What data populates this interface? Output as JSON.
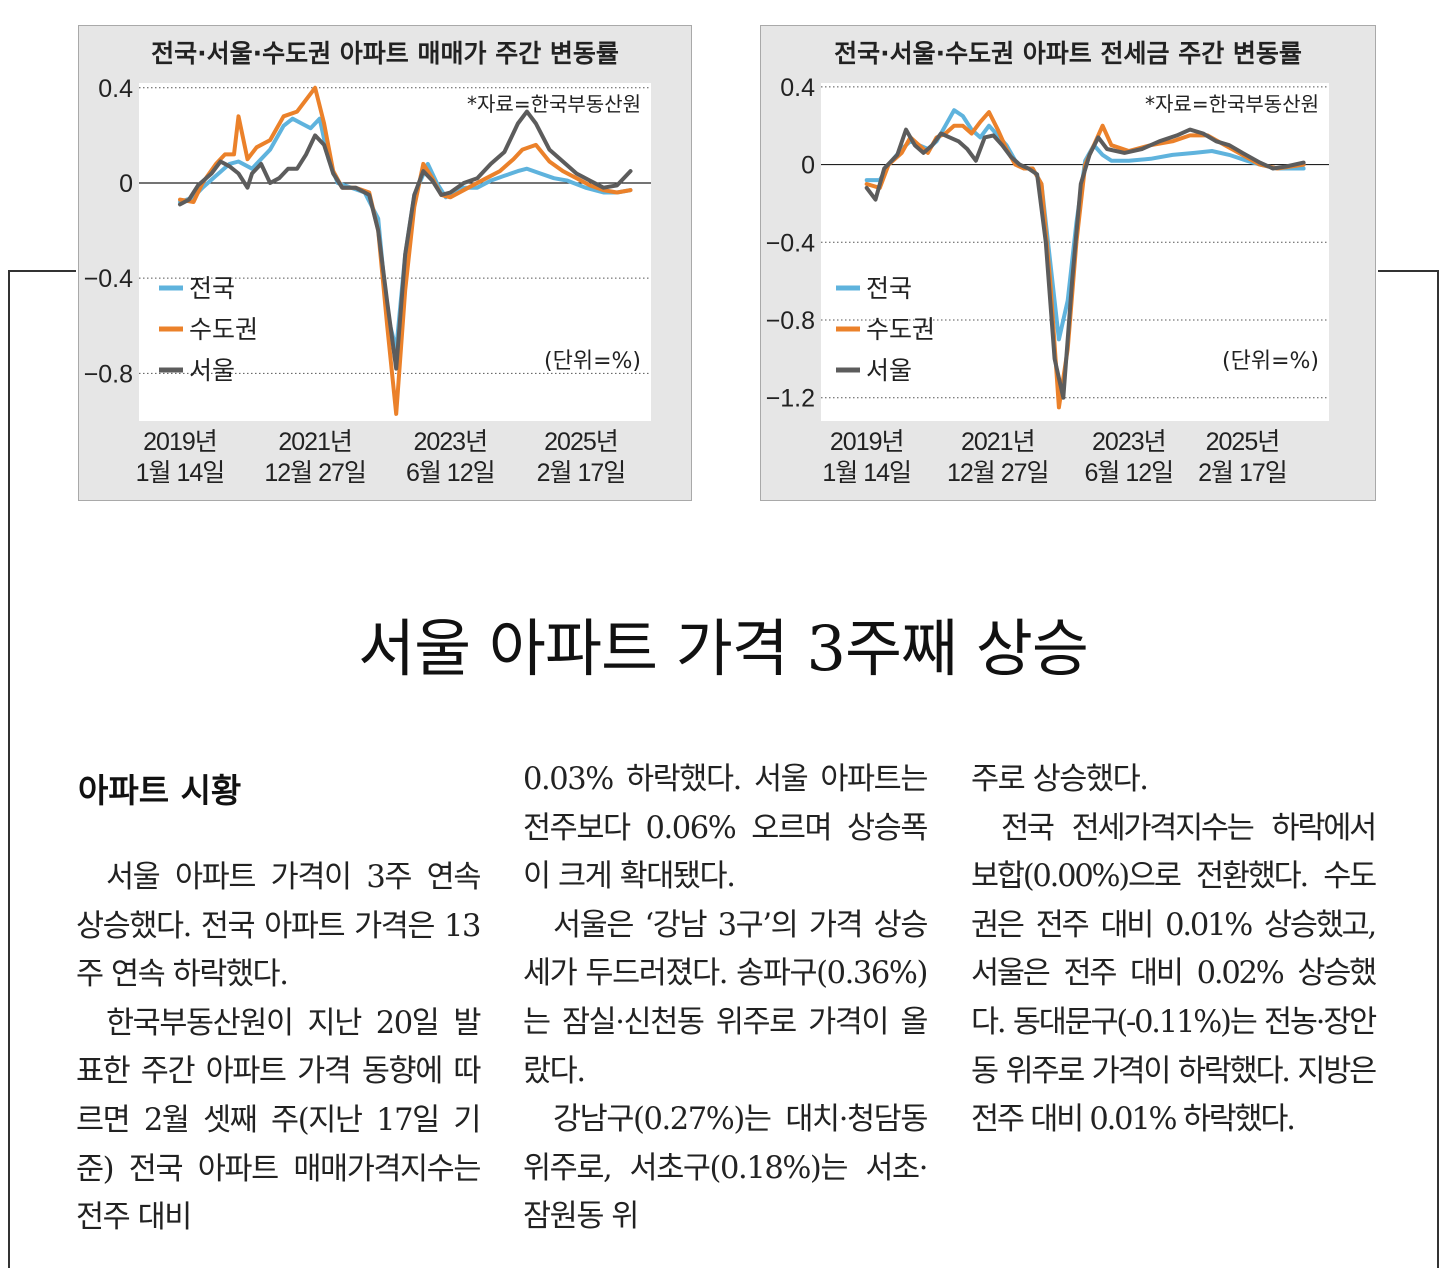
{
  "chart_data": [
    {
      "type": "line",
      "title": "전국·서울·수도권 아파트 매매가 주간 변동률",
      "source": "*자료=한국부동산원",
      "unit": "(단위=%)",
      "ylim": [
        -1.0,
        0.42
      ],
      "yticks": [
        "0.4",
        "0",
        "−0.4",
        "−0.8"
      ],
      "ytick_values": [
        0.4,
        0,
        -0.4,
        -0.8
      ],
      "xticks": [
        {
          "t": 0.0,
          "l1": "2019년",
          "l2": "1월 14일"
        },
        {
          "t": 0.3,
          "l1": "2021년",
          "l2": "12월 27일"
        },
        {
          "t": 0.6,
          "l1": "2023년",
          "l2": "6월 12일"
        },
        {
          "t": 0.89,
          "l1": "2025년",
          "l2": "2월 17일"
        }
      ],
      "legend": [
        "전국",
        "수도권",
        "서울"
      ],
      "grid": "dotted",
      "series": [
        {
          "name": "전국",
          "color": "#5fb3dd",
          "points": [
            [
              0.0,
              -0.08
            ],
            [
              0.03,
              -0.06
            ],
            [
              0.05,
              -0.02
            ],
            [
              0.08,
              0.03
            ],
            [
              0.11,
              0.08
            ],
            [
              0.13,
              0.09
            ],
            [
              0.16,
              0.06
            ],
            [
              0.2,
              0.14
            ],
            [
              0.23,
              0.24
            ],
            [
              0.25,
              0.27
            ],
            [
              0.27,
              0.25
            ],
            [
              0.29,
              0.23
            ],
            [
              0.31,
              0.27
            ],
            [
              0.33,
              0.1
            ],
            [
              0.35,
              0.0
            ],
            [
              0.38,
              -0.02
            ],
            [
              0.41,
              -0.04
            ],
            [
              0.44,
              -0.15
            ],
            [
              0.46,
              -0.55
            ],
            [
              0.48,
              -0.7
            ],
            [
              0.5,
              -0.3
            ],
            [
              0.52,
              -0.05
            ],
            [
              0.55,
              0.08
            ],
            [
              0.57,
              0.0
            ],
            [
              0.59,
              -0.06
            ],
            [
              0.62,
              -0.02
            ],
            [
              0.66,
              -0.02
            ],
            [
              0.69,
              0.01
            ],
            [
              0.72,
              0.03
            ],
            [
              0.75,
              0.05
            ],
            [
              0.77,
              0.06
            ],
            [
              0.8,
              0.04
            ],
            [
              0.83,
              0.02
            ],
            [
              0.86,
              0.01
            ],
            [
              0.9,
              -0.02
            ],
            [
              0.94,
              -0.04
            ],
            [
              0.97,
              -0.04
            ],
            [
              1.0,
              -0.03
            ]
          ]
        },
        {
          "name": "수도권",
          "color": "#eb812a",
          "points": [
            [
              0.0,
              -0.07
            ],
            [
              0.03,
              -0.08
            ],
            [
              0.05,
              0.0
            ],
            [
              0.08,
              0.08
            ],
            [
              0.1,
              0.12
            ],
            [
              0.12,
              0.12
            ],
            [
              0.13,
              0.28
            ],
            [
              0.15,
              0.1
            ],
            [
              0.17,
              0.15
            ],
            [
              0.2,
              0.18
            ],
            [
              0.23,
              0.28
            ],
            [
              0.26,
              0.3
            ],
            [
              0.28,
              0.35
            ],
            [
              0.3,
              0.4
            ],
            [
              0.32,
              0.25
            ],
            [
              0.34,
              0.05
            ],
            [
              0.36,
              -0.02
            ],
            [
              0.39,
              -0.02
            ],
            [
              0.42,
              -0.04
            ],
            [
              0.44,
              -0.2
            ],
            [
              0.46,
              -0.6
            ],
            [
              0.48,
              -0.97
            ],
            [
              0.5,
              -0.45
            ],
            [
              0.52,
              -0.1
            ],
            [
              0.54,
              0.08
            ],
            [
              0.56,
              0.02
            ],
            [
              0.58,
              -0.05
            ],
            [
              0.6,
              -0.06
            ],
            [
              0.64,
              -0.02
            ],
            [
              0.68,
              0.02
            ],
            [
              0.71,
              0.05
            ],
            [
              0.74,
              0.1
            ],
            [
              0.76,
              0.14
            ],
            [
              0.79,
              0.16
            ],
            [
              0.82,
              0.09
            ],
            [
              0.85,
              0.05
            ],
            [
              0.88,
              0.02
            ],
            [
              0.91,
              -0.01
            ],
            [
              0.94,
              -0.03
            ],
            [
              0.97,
              -0.04
            ],
            [
              1.0,
              -0.03
            ]
          ]
        },
        {
          "name": "서울",
          "color": "#5c5c5c",
          "points": [
            [
              0.0,
              -0.09
            ],
            [
              0.02,
              -0.07
            ],
            [
              0.04,
              -0.01
            ],
            [
              0.07,
              0.04
            ],
            [
              0.09,
              0.09
            ],
            [
              0.11,
              0.07
            ],
            [
              0.13,
              0.04
            ],
            [
              0.15,
              -0.02
            ],
            [
              0.16,
              0.04
            ],
            [
              0.18,
              0.08
            ],
            [
              0.2,
              0.0
            ],
            [
              0.22,
              0.02
            ],
            [
              0.24,
              0.06
            ],
            [
              0.26,
              0.06
            ],
            [
              0.28,
              0.12
            ],
            [
              0.3,
              0.2
            ],
            [
              0.32,
              0.16
            ],
            [
              0.34,
              0.04
            ],
            [
              0.36,
              -0.02
            ],
            [
              0.39,
              -0.02
            ],
            [
              0.42,
              -0.05
            ],
            [
              0.44,
              -0.2
            ],
            [
              0.46,
              -0.5
            ],
            [
              0.48,
              -0.78
            ],
            [
              0.5,
              -0.3
            ],
            [
              0.52,
              -0.05
            ],
            [
              0.54,
              0.05
            ],
            [
              0.56,
              0.01
            ],
            [
              0.58,
              -0.05
            ],
            [
              0.6,
              -0.04
            ],
            [
              0.63,
              0.0
            ],
            [
              0.66,
              0.02
            ],
            [
              0.69,
              0.08
            ],
            [
              0.72,
              0.13
            ],
            [
              0.75,
              0.25
            ],
            [
              0.77,
              0.3
            ],
            [
              0.79,
              0.25
            ],
            [
              0.82,
              0.14
            ],
            [
              0.85,
              0.09
            ],
            [
              0.88,
              0.04
            ],
            [
              0.91,
              0.01
            ],
            [
              0.94,
              -0.02
            ],
            [
              0.97,
              -0.01
            ],
            [
              1.0,
              0.05
            ]
          ]
        }
      ]
    },
    {
      "type": "line",
      "title": "전국·서울·수도권 아파트 전세금 주간 변동률",
      "source": "*자료=한국부동산원",
      "unit": "(단위=%)",
      "ylim": [
        -1.32,
        0.42
      ],
      "yticks": [
        "0.4",
        "0",
        "−0.4",
        "−0.8",
        "−1.2"
      ],
      "ytick_values": [
        0.4,
        0,
        -0.4,
        -0.8,
        -1.2
      ],
      "xticks": [
        {
          "t": 0.0,
          "l1": "2019년",
          "l2": "1월 14일"
        },
        {
          "t": 0.3,
          "l1": "2021년",
          "l2": "12월 27일"
        },
        {
          "t": 0.6,
          "l1": "2023년",
          "l2": "6월 12일"
        },
        {
          "t": 0.86,
          "l1": "2025년",
          "l2": "2월 17일"
        }
      ],
      "legend": [
        "전국",
        "수도권",
        "서울"
      ],
      "grid": "dotted",
      "series": [
        {
          "name": "전국",
          "color": "#5fb3dd",
          "points": [
            [
              0.0,
              -0.08
            ],
            [
              0.03,
              -0.08
            ],
            [
              0.05,
              0.0
            ],
            [
              0.08,
              0.08
            ],
            [
              0.1,
              0.12
            ],
            [
              0.12,
              0.1
            ],
            [
              0.14,
              0.08
            ],
            [
              0.16,
              0.12
            ],
            [
              0.18,
              0.2
            ],
            [
              0.2,
              0.28
            ],
            [
              0.22,
              0.25
            ],
            [
              0.24,
              0.18
            ],
            [
              0.26,
              0.14
            ],
            [
              0.28,
              0.2
            ],
            [
              0.3,
              0.15
            ],
            [
              0.32,
              0.1
            ],
            [
              0.34,
              0.02
            ],
            [
              0.36,
              -0.02
            ],
            [
              0.38,
              -0.02
            ],
            [
              0.4,
              -0.1
            ],
            [
              0.42,
              -0.5
            ],
            [
              0.44,
              -0.9
            ],
            [
              0.46,
              -0.7
            ],
            [
              0.48,
              -0.3
            ],
            [
              0.5,
              0.02
            ],
            [
              0.52,
              0.1
            ],
            [
              0.54,
              0.05
            ],
            [
              0.56,
              0.02
            ],
            [
              0.6,
              0.02
            ],
            [
              0.65,
              0.03
            ],
            [
              0.7,
              0.05
            ],
            [
              0.75,
              0.06
            ],
            [
              0.79,
              0.07
            ],
            [
              0.83,
              0.05
            ],
            [
              0.87,
              0.02
            ],
            [
              0.9,
              0.0
            ],
            [
              0.94,
              -0.02
            ],
            [
              0.97,
              -0.02
            ],
            [
              1.0,
              -0.02
            ]
          ]
        },
        {
          "name": "수도권",
          "color": "#eb812a",
          "points": [
            [
              0.0,
              -0.1
            ],
            [
              0.03,
              -0.12
            ],
            [
              0.05,
              0.0
            ],
            [
              0.08,
              0.06
            ],
            [
              0.1,
              0.14
            ],
            [
              0.12,
              0.1
            ],
            [
              0.14,
              0.06
            ],
            [
              0.16,
              0.14
            ],
            [
              0.18,
              0.16
            ],
            [
              0.2,
              0.2
            ],
            [
              0.22,
              0.2
            ],
            [
              0.24,
              0.16
            ],
            [
              0.26,
              0.22
            ],
            [
              0.28,
              0.27
            ],
            [
              0.3,
              0.18
            ],
            [
              0.32,
              0.08
            ],
            [
              0.34,
              0.0
            ],
            [
              0.36,
              -0.02
            ],
            [
              0.38,
              -0.02
            ],
            [
              0.4,
              -0.1
            ],
            [
              0.42,
              -0.6
            ],
            [
              0.44,
              -1.25
            ],
            [
              0.46,
              -0.95
            ],
            [
              0.48,
              -0.4
            ],
            [
              0.5,
              0.0
            ],
            [
              0.52,
              0.1
            ],
            [
              0.54,
              0.2
            ],
            [
              0.56,
              0.1
            ],
            [
              0.6,
              0.07
            ],
            [
              0.65,
              0.1
            ],
            [
              0.7,
              0.12
            ],
            [
              0.74,
              0.15
            ],
            [
              0.78,
              0.15
            ],
            [
              0.82,
              0.1
            ],
            [
              0.86,
              0.05
            ],
            [
              0.9,
              0.0
            ],
            [
              0.94,
              -0.02
            ],
            [
              0.97,
              -0.01
            ],
            [
              1.0,
              0.0
            ]
          ]
        },
        {
          "name": "서울",
          "color": "#5c5c5c",
          "points": [
            [
              0.0,
              -0.12
            ],
            [
              0.02,
              -0.18
            ],
            [
              0.04,
              -0.02
            ],
            [
              0.07,
              0.05
            ],
            [
              0.09,
              0.18
            ],
            [
              0.11,
              0.1
            ],
            [
              0.13,
              0.06
            ],
            [
              0.15,
              0.1
            ],
            [
              0.17,
              0.16
            ],
            [
              0.19,
              0.14
            ],
            [
              0.21,
              0.12
            ],
            [
              0.23,
              0.08
            ],
            [
              0.25,
              0.02
            ],
            [
              0.27,
              0.14
            ],
            [
              0.29,
              0.15
            ],
            [
              0.31,
              0.1
            ],
            [
              0.33,
              0.04
            ],
            [
              0.35,
              0.0
            ],
            [
              0.37,
              -0.02
            ],
            [
              0.39,
              -0.05
            ],
            [
              0.41,
              -0.4
            ],
            [
              0.43,
              -1.0
            ],
            [
              0.45,
              -1.2
            ],
            [
              0.47,
              -0.6
            ],
            [
              0.49,
              -0.1
            ],
            [
              0.51,
              0.05
            ],
            [
              0.53,
              0.14
            ],
            [
              0.55,
              0.08
            ],
            [
              0.59,
              0.06
            ],
            [
              0.63,
              0.08
            ],
            [
              0.67,
              0.12
            ],
            [
              0.71,
              0.15
            ],
            [
              0.74,
              0.18
            ],
            [
              0.77,
              0.16
            ],
            [
              0.8,
              0.12
            ],
            [
              0.83,
              0.1
            ],
            [
              0.86,
              0.06
            ],
            [
              0.9,
              0.01
            ],
            [
              0.93,
              -0.02
            ],
            [
              0.96,
              -0.01
            ],
            [
              1.0,
              0.01
            ]
          ]
        }
      ]
    }
  ],
  "article": {
    "headline": "서울 아파트 가격 3주째 상승",
    "section_title": "아파트 시황",
    "col1": [
      "서울 아파트 가격이 3주 연속 상승했다. 전국 아파트 가격은 13주 연속 하락했다.",
      "한국부동산원이 지난 20일 발표한 주간 아파트 가격 동향에 따르면 2월 셋째 주(지난 17일 기준) 전국 아파트 매매가격지수는 전주 대비"
    ],
    "col2": [
      "0.03% 하락했다. 서울 아파트는 전주보다 0.06% 오르며 상승폭이 크게 확대됐다.",
      "서울은 ‘강남 3구’의 가격 상승세가 두드러졌다. 송파구(0.36%)는 잠실·신천동 위주로 가격이 올랐다.",
      "강남구(0.27%)는 대치·청담동 위주로, 서초구(0.18%)는 서초·잠원동 위"
    ],
    "col3": [
      "주로 상승했다.",
      "전국 전세가격지수는 하락에서 보합(0.00%)으로 전환했다. 수도권은 전주 대비 0.01% 상승했고, 서울은 전주 대비 0.02% 상승했다. 동대문구(-0.11%)는 전농·장안동 위주로 가격이 하락했다. 지방은 전주 대비 0.01% 하락했다."
    ]
  }
}
